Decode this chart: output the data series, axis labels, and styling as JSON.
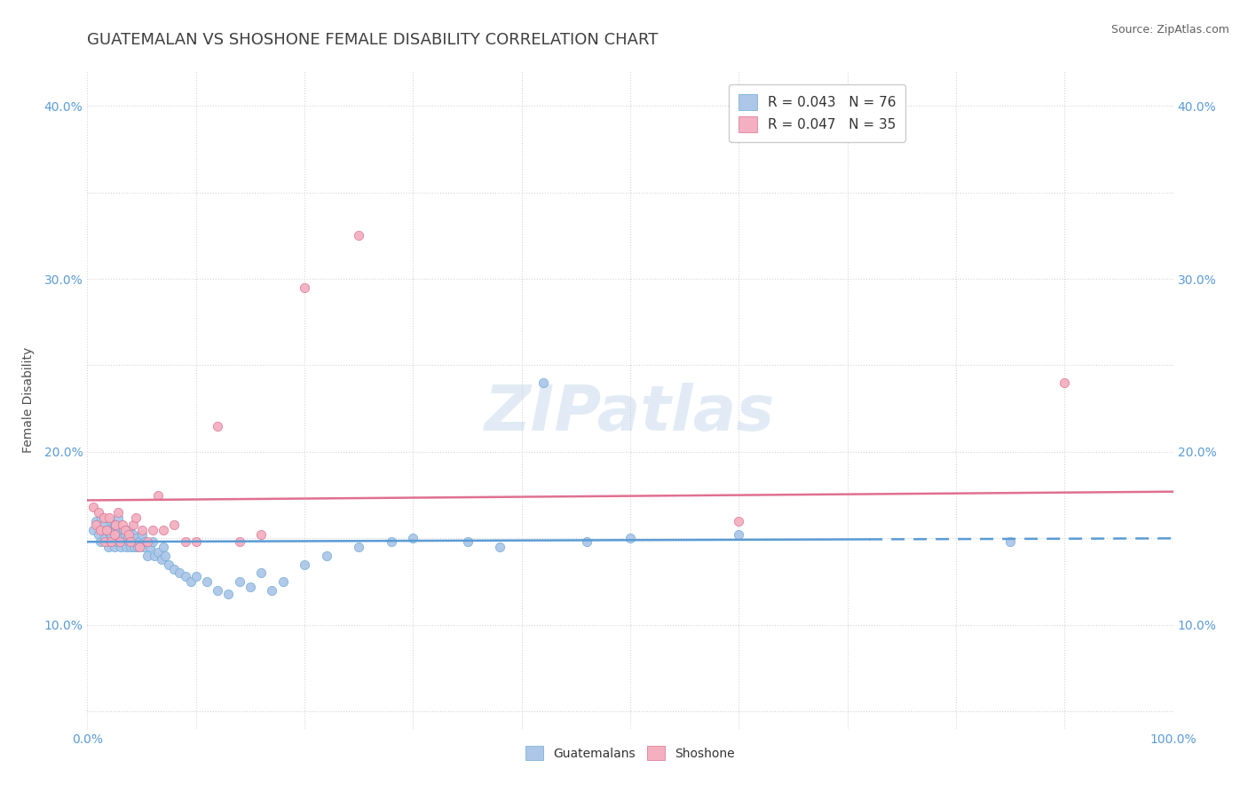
{
  "title": "GUATEMALAN VS SHOSHONE FEMALE DISABILITY CORRELATION CHART",
  "source": "Source: ZipAtlas.com",
  "ylabel": "Female Disability",
  "xlim": [
    0.0,
    1.0
  ],
  "ylim": [
    0.04,
    0.42
  ],
  "x_ticks": [
    0.0,
    0.1,
    0.2,
    0.3,
    0.4,
    0.5,
    0.6,
    0.7,
    0.8,
    0.9,
    1.0
  ],
  "y_ticks": [
    0.05,
    0.1,
    0.15,
    0.2,
    0.25,
    0.3,
    0.35,
    0.4
  ],
  "y_tick_labels_left": [
    "",
    "10.0%",
    "",
    "20.0%",
    "",
    "30.0%",
    "",
    "40.0%"
  ],
  "y_tick_labels_right": [
    "",
    "10.0%",
    "",
    "20.0%",
    "",
    "30.0%",
    "",
    "40.0%"
  ],
  "legend_entries": [
    {
      "label": "R = 0.043   N = 76",
      "color": "#aec6e8"
    },
    {
      "label": "R = 0.047   N = 35",
      "color": "#f4b0c0"
    }
  ],
  "bottom_legend": [
    {
      "label": "Guatemalans",
      "color": "#aec6e8"
    },
    {
      "label": "Shoshone",
      "color": "#f4b0c0"
    }
  ],
  "guatemalan_color": "#aec6e8",
  "guatemalan_edge": "#6aaad4",
  "shoshone_color": "#f4b0c0",
  "shoshone_edge": "#d87090",
  "trend_guatemalan_color": "#5b9bd5",
  "trend_shoshone_color": "#e07090",
  "watermark": "ZIPatlas",
  "guatemalan_x": [
    0.005,
    0.008,
    0.01,
    0.012,
    0.013,
    0.015,
    0.016,
    0.018,
    0.019,
    0.02,
    0.021,
    0.022,
    0.022,
    0.023,
    0.025,
    0.025,
    0.026,
    0.027,
    0.028,
    0.028,
    0.03,
    0.03,
    0.031,
    0.032,
    0.033,
    0.034,
    0.035,
    0.036,
    0.037,
    0.038,
    0.039,
    0.04,
    0.041,
    0.042,
    0.043,
    0.044,
    0.045,
    0.046,
    0.048,
    0.05,
    0.052,
    0.053,
    0.055,
    0.058,
    0.06,
    0.062,
    0.065,
    0.068,
    0.07,
    0.072,
    0.075,
    0.08,
    0.085,
    0.09,
    0.095,
    0.1,
    0.11,
    0.12,
    0.13,
    0.14,
    0.15,
    0.16,
    0.17,
    0.18,
    0.2,
    0.22,
    0.25,
    0.28,
    0.3,
    0.35,
    0.38,
    0.42,
    0.46,
    0.5,
    0.6,
    0.85
  ],
  "guatemalan_y": [
    0.155,
    0.16,
    0.152,
    0.148,
    0.162,
    0.158,
    0.15,
    0.155,
    0.145,
    0.153,
    0.148,
    0.152,
    0.16,
    0.155,
    0.145,
    0.158,
    0.15,
    0.148,
    0.155,
    0.162,
    0.152,
    0.148,
    0.145,
    0.15,
    0.155,
    0.148,
    0.152,
    0.145,
    0.15,
    0.148,
    0.155,
    0.145,
    0.148,
    0.152,
    0.145,
    0.148,
    0.15,
    0.145,
    0.148,
    0.152,
    0.145,
    0.148,
    0.14,
    0.145,
    0.148,
    0.14,
    0.142,
    0.138,
    0.145,
    0.14,
    0.135,
    0.132,
    0.13,
    0.128,
    0.125,
    0.128,
    0.125,
    0.12,
    0.118,
    0.125,
    0.122,
    0.13,
    0.12,
    0.125,
    0.135,
    0.14,
    0.145,
    0.148,
    0.15,
    0.148,
    0.145,
    0.24,
    0.148,
    0.15,
    0.152,
    0.148
  ],
  "shoshone_x": [
    0.005,
    0.008,
    0.01,
    0.012,
    0.015,
    0.016,
    0.018,
    0.02,
    0.022,
    0.025,
    0.026,
    0.028,
    0.03,
    0.032,
    0.035,
    0.038,
    0.04,
    0.042,
    0.045,
    0.048,
    0.05,
    0.055,
    0.06,
    0.065,
    0.07,
    0.08,
    0.09,
    0.1,
    0.12,
    0.14,
    0.16,
    0.2,
    0.25,
    0.6,
    0.9
  ],
  "shoshone_y": [
    0.168,
    0.158,
    0.165,
    0.155,
    0.162,
    0.148,
    0.155,
    0.162,
    0.148,
    0.152,
    0.158,
    0.165,
    0.148,
    0.158,
    0.155,
    0.152,
    0.148,
    0.158,
    0.162,
    0.145,
    0.155,
    0.148,
    0.155,
    0.175,
    0.155,
    0.158,
    0.148,
    0.148,
    0.215,
    0.148,
    0.152,
    0.295,
    0.325,
    0.16,
    0.24
  ],
  "background_color": "#ffffff",
  "grid_color": "#d0d0d0",
  "title_color": "#404040",
  "title_fontsize": 13,
  "axis_fontsize": 10,
  "tick_color": "#5b9bd5",
  "legend_fontsize": 11,
  "trend_solid_end": 0.72,
  "trend_dash_start": 0.72
}
